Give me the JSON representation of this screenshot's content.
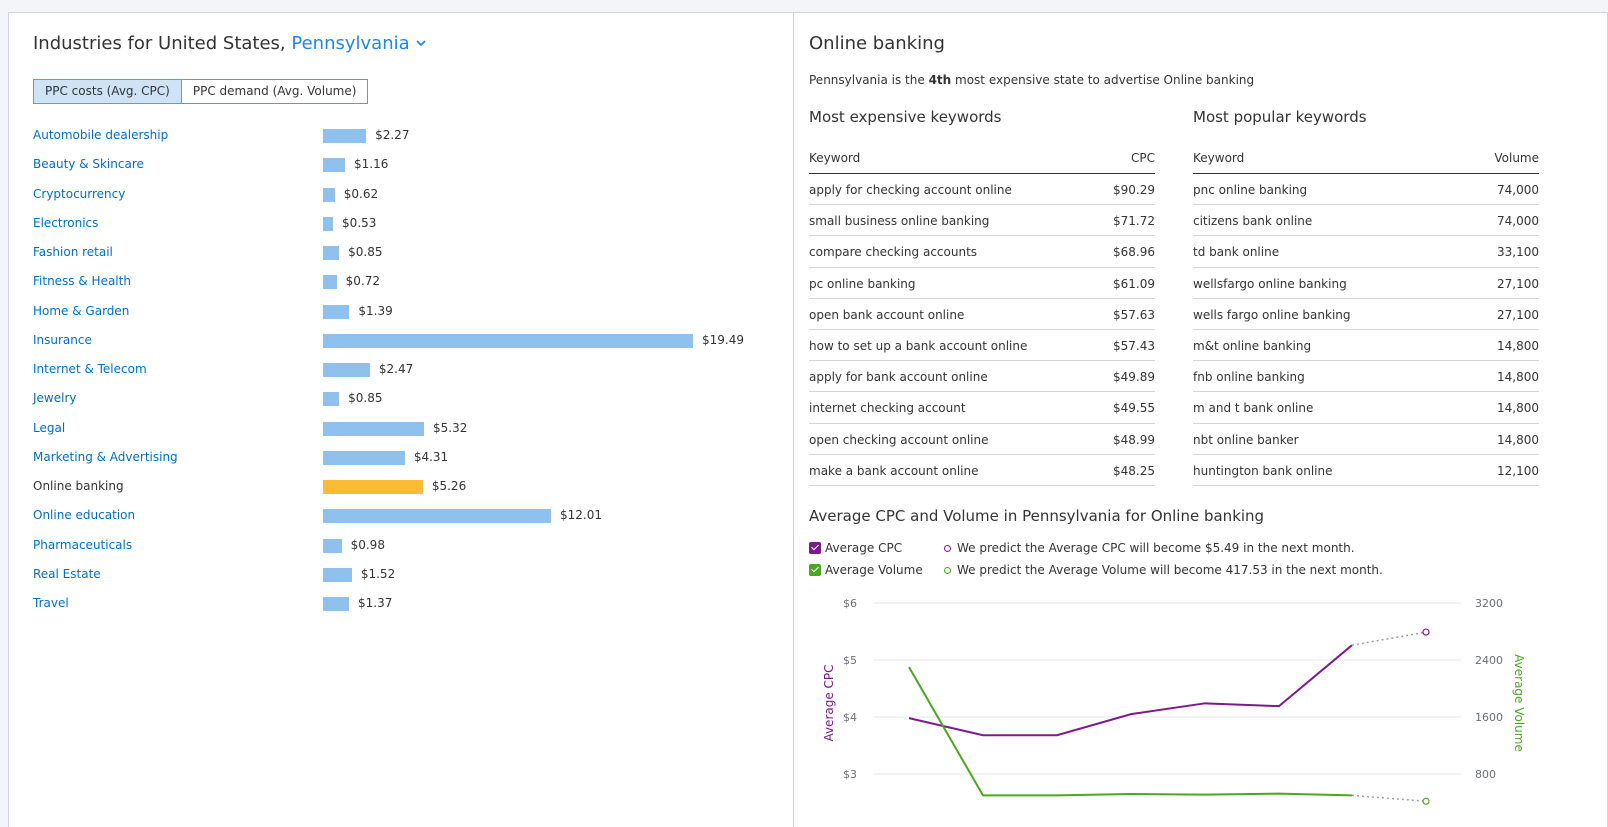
{
  "left": {
    "title_prefix": "Industries for United States, ",
    "state": "Pennsylvania",
    "toggle": {
      "cpc": "PPC costs (Avg. CPC)",
      "volume": "PPC demand (Avg. Volume)"
    },
    "industries": [
      {
        "name": "Automobile dealership",
        "value": "$2.27",
        "cpc": 2.27
      },
      {
        "name": "Beauty & Skincare",
        "value": "$1.16",
        "cpc": 1.16
      },
      {
        "name": "Cryptocurrency",
        "value": "$0.62",
        "cpc": 0.62
      },
      {
        "name": "Electronics",
        "value": "$0.53",
        "cpc": 0.53
      },
      {
        "name": "Fashion retail",
        "value": "$0.85",
        "cpc": 0.85
      },
      {
        "name": "Fitness & Health",
        "value": "$0.72",
        "cpc": 0.72
      },
      {
        "name": "Home & Garden",
        "value": "$1.39",
        "cpc": 1.39
      },
      {
        "name": "Insurance",
        "value": "$19.49",
        "cpc": 19.49
      },
      {
        "name": "Internet & Telecom",
        "value": "$2.47",
        "cpc": 2.47
      },
      {
        "name": "Jewelry",
        "value": "$0.85",
        "cpc": 0.85
      },
      {
        "name": "Legal",
        "value": "$5.32",
        "cpc": 5.32
      },
      {
        "name": "Marketing & Advertising",
        "value": "$4.31",
        "cpc": 4.31
      },
      {
        "name": "Online banking",
        "value": "$5.26",
        "cpc": 5.26,
        "current": true
      },
      {
        "name": "Online education",
        "value": "$12.01",
        "cpc": 12.01
      },
      {
        "name": "Pharmaceuticals",
        "value": "$0.98",
        "cpc": 0.98
      },
      {
        "name": "Real Estate",
        "value": "$1.52",
        "cpc": 1.52
      },
      {
        "name": "Travel",
        "value": "$1.37",
        "cpc": 1.37
      }
    ],
    "colors": {
      "bar": "#8fc1ef",
      "current_bar": "#fbbb33",
      "link": "#006dca"
    }
  },
  "right": {
    "title": "Online banking",
    "subtitle": {
      "pre": "Pennsylvania is the ",
      "rank": "4th",
      "post": " most expensive state to advertise Online banking"
    },
    "expensive": {
      "title": "Most expensive keywords",
      "col1": "Keyword",
      "col2": "CPC",
      "rows": [
        {
          "kw": "apply for checking account online",
          "v": "$90.29"
        },
        {
          "kw": "small business online banking",
          "v": "$71.72"
        },
        {
          "kw": "compare checking accounts",
          "v": "$68.96"
        },
        {
          "kw": "pc online banking",
          "v": "$61.09"
        },
        {
          "kw": "open bank account online",
          "v": "$57.63"
        },
        {
          "kw": "how to set up a bank account online",
          "v": "$57.43"
        },
        {
          "kw": "apply for bank account online",
          "v": "$49.89"
        },
        {
          "kw": "internet checking account",
          "v": "$49.55"
        },
        {
          "kw": "open checking account online",
          "v": "$48.99"
        },
        {
          "kw": "make a bank account online",
          "v": "$48.25"
        }
      ]
    },
    "popular": {
      "title": "Most popular keywords",
      "col1": "Keyword",
      "col2": "Volume",
      "rows": [
        {
          "kw": "pnc online banking",
          "v": "74,000"
        },
        {
          "kw": "citizens bank online",
          "v": "74,000"
        },
        {
          "kw": "td bank online",
          "v": "33,100"
        },
        {
          "kw": "wellsfargo online banking",
          "v": "27,100"
        },
        {
          "kw": "wells fargo online banking",
          "v": "27,100"
        },
        {
          "kw": "m&t online banking",
          "v": "14,800"
        },
        {
          "kw": "fnb online banking",
          "v": "14,800"
        },
        {
          "kw": "m and t bank online",
          "v": "14,800"
        },
        {
          "kw": "nbt online banker",
          "v": "14,800"
        },
        {
          "kw": "huntington bank online",
          "v": "12,100"
        }
      ]
    },
    "chart_section": {
      "title": "Average CPC and Volume in Pennsylvania for Online banking",
      "legend_cpc": "Average CPC",
      "legend_volume": "Average Volume",
      "predict_cpc": "We predict the Average CPC will become $5.49 in the next month.",
      "predict_volume": "We predict the Average Volume will become 417.53 in the next month."
    }
  },
  "chart_data": {
    "type": "line",
    "ylabel": "Average CPC",
    "y2label": "Average Volume",
    "left_ticks": [
      "$3",
      "$4",
      "$5",
      "$6"
    ],
    "right_ticks": [
      "800",
      "1600",
      "2400",
      "3200"
    ],
    "ylim": [
      3,
      6
    ],
    "y2lim": [
      800,
      3200
    ],
    "grid": true,
    "series": [
      {
        "name": "Average CPC",
        "axis": "left",
        "color": "#7b1a8c",
        "values": [
          3.98,
          3.68,
          3.68,
          4.05,
          4.24,
          4.19,
          5.26
        ],
        "forecast": 5.49
      },
      {
        "name": "Average Volume",
        "axis": "right",
        "color": "#4aa71f",
        "values": [
          2300,
          500,
          500,
          520,
          510,
          525,
          500
        ],
        "forecast": 417.53
      }
    ]
  }
}
